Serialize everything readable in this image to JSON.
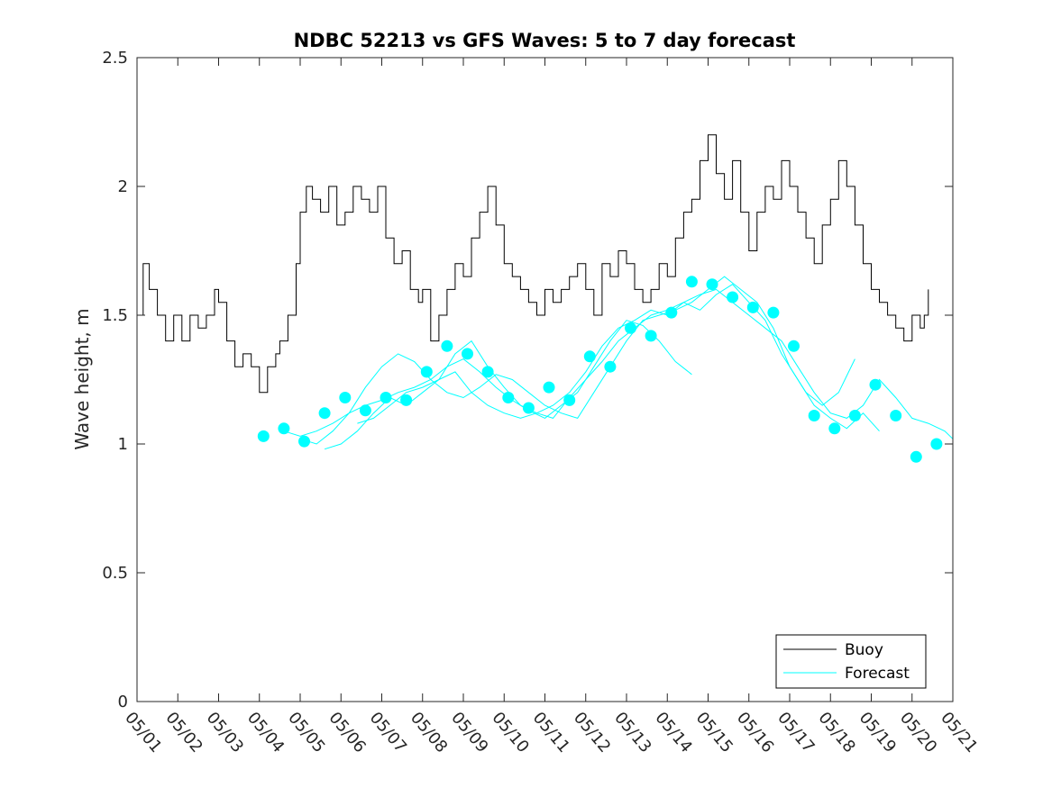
{
  "chart_data": {
    "type": "line",
    "title": "NDBC 52213 vs GFS Waves: 5 to 7 day forecast",
    "xlabel": "",
    "ylabel": "Wave height, m",
    "xlim": [
      0,
      20
    ],
    "ylim": [
      0,
      2.5
    ],
    "x_ticks": [
      "05/01",
      "05/02",
      "05/03",
      "05/04",
      "05/05",
      "05/06",
      "05/07",
      "05/08",
      "05/09",
      "05/10",
      "05/11",
      "05/12",
      "05/13",
      "05/14",
      "05/15",
      "05/16",
      "05/17",
      "05/18",
      "05/19",
      "05/20",
      "05/21"
    ],
    "y_ticks": [
      "0",
      "0.5",
      "1",
      "1.5",
      "2",
      "2.5"
    ],
    "grid": false,
    "legend": {
      "position": "bottom-right",
      "entries": [
        "Buoy",
        "Forecast"
      ]
    },
    "colors": {
      "buoy": "#000000",
      "forecast": "#00ffff"
    },
    "buoy": {
      "name": "Buoy",
      "x": [
        0.0,
        0.15,
        0.3,
        0.5,
        0.7,
        0.9,
        1.1,
        1.3,
        1.5,
        1.7,
        1.9,
        2.0,
        2.2,
        2.4,
        2.6,
        2.8,
        3.0,
        3.2,
        3.4,
        3.5,
        3.7,
        3.9,
        4.0,
        4.15,
        4.3,
        4.5,
        4.7,
        4.9,
        5.1,
        5.3,
        5.5,
        5.7,
        5.9,
        6.1,
        6.3,
        6.5,
        6.7,
        6.9,
        7.0,
        7.2,
        7.4,
        7.6,
        7.8,
        8.0,
        8.2,
        8.4,
        8.6,
        8.8,
        9.0,
        9.2,
        9.4,
        9.6,
        9.8,
        10.0,
        10.2,
        10.4,
        10.6,
        10.8,
        11.0,
        11.2,
        11.4,
        11.6,
        11.8,
        12.0,
        12.2,
        12.4,
        12.6,
        12.8,
        13.0,
        13.2,
        13.4,
        13.6,
        13.8,
        14.0,
        14.2,
        14.4,
        14.6,
        14.8,
        15.0,
        15.2,
        15.4,
        15.6,
        15.8,
        16.0,
        16.2,
        16.4,
        16.6,
        16.8,
        17.0,
        17.2,
        17.4,
        17.6,
        17.8,
        18.0,
        18.2,
        18.4,
        18.6,
        18.8,
        19.0,
        19.2,
        19.3,
        19.4
      ],
      "values": [
        1.5,
        1.7,
        1.6,
        1.5,
        1.4,
        1.5,
        1.4,
        1.5,
        1.45,
        1.5,
        1.6,
        1.55,
        1.4,
        1.3,
        1.35,
        1.3,
        1.2,
        1.3,
        1.35,
        1.4,
        1.5,
        1.7,
        1.9,
        2.0,
        1.95,
        1.9,
        2.0,
        1.85,
        1.9,
        2.0,
        1.95,
        1.9,
        2.0,
        1.8,
        1.7,
        1.75,
        1.6,
        1.55,
        1.6,
        1.4,
        1.5,
        1.6,
        1.7,
        1.65,
        1.8,
        1.9,
        2.0,
        1.85,
        1.7,
        1.65,
        1.6,
        1.55,
        1.5,
        1.6,
        1.55,
        1.6,
        1.65,
        1.7,
        1.6,
        1.5,
        1.7,
        1.65,
        1.75,
        1.7,
        1.6,
        1.55,
        1.6,
        1.7,
        1.65,
        1.8,
        1.9,
        1.95,
        2.1,
        2.2,
        2.05,
        1.95,
        2.1,
        1.9,
        1.75,
        1.9,
        2.0,
        1.95,
        2.1,
        2.0,
        1.9,
        1.8,
        1.7,
        1.85,
        1.95,
        2.1,
        2.0,
        1.85,
        1.7,
        1.6,
        1.55,
        1.5,
        1.45,
        1.4,
        1.5,
        1.45,
        1.5,
        1.6
      ]
    },
    "forecast": {
      "name": "Forecast",
      "markers": {
        "x": [
          3.1,
          3.6,
          4.1,
          4.6,
          5.1,
          5.6,
          6.1,
          6.6,
          7.1,
          7.6,
          8.1,
          8.6,
          9.1,
          9.6,
          10.1,
          10.6,
          11.1,
          11.6,
          12.1,
          12.6,
          13.1,
          13.6,
          14.1,
          14.6,
          15.1,
          15.6,
          16.1,
          16.6,
          17.1,
          17.6,
          18.1,
          18.6,
          19.1,
          19.6
        ],
        "values": [
          1.03,
          1.06,
          1.01,
          1.12,
          1.18,
          1.13,
          1.18,
          1.17,
          1.28,
          1.38,
          1.35,
          1.28,
          1.18,
          1.14,
          1.22,
          1.17,
          1.34,
          1.3,
          1.45,
          1.42,
          1.51,
          1.63,
          1.62,
          1.57,
          1.53,
          1.51,
          1.38,
          1.11,
          1.06,
          1.11,
          1.23,
          1.11,
          0.95,
          1.0
        ]
      },
      "runs": [
        {
          "x": [
            3.6,
            4.0,
            4.4,
            4.8,
            5.2,
            5.6,
            6.0,
            6.4,
            6.8,
            7.2,
            7.6,
            8.0,
            8.4,
            8.8,
            9.2,
            9.6,
            10.0,
            10.4,
            10.8,
            11.2,
            11.6,
            12.0,
            12.4,
            12.8,
            13.2,
            13.6
          ],
          "values": [
            1.05,
            1.03,
            1.05,
            1.08,
            1.12,
            1.15,
            1.17,
            1.2,
            1.22,
            1.25,
            1.3,
            1.33,
            1.28,
            1.22,
            1.17,
            1.13,
            1.1,
            1.15,
            1.2,
            1.3,
            1.4,
            1.48,
            1.46,
            1.4,
            1.32,
            1.27
          ]
        },
        {
          "x": [
            4.0,
            4.4,
            4.8,
            5.2,
            5.6,
            6.0,
            6.4,
            6.8,
            7.2,
            7.6,
            8.0,
            8.4,
            8.8,
            9.2,
            9.6,
            10.0,
            10.4,
            10.8,
            11.2,
            11.6,
            12.0,
            12.4,
            12.8,
            13.2,
            13.6,
            14.0,
            14.4,
            14.8,
            15.2,
            15.6,
            16.0,
            16.4,
            16.8,
            17.2,
            17.6
          ],
          "values": [
            1.02,
            1.0,
            1.05,
            1.12,
            1.22,
            1.3,
            1.35,
            1.32,
            1.25,
            1.2,
            1.18,
            1.22,
            1.27,
            1.25,
            1.2,
            1.15,
            1.12,
            1.1,
            1.2,
            1.3,
            1.4,
            1.48,
            1.5,
            1.52,
            1.55,
            1.6,
            1.65,
            1.6,
            1.55,
            1.45,
            1.3,
            1.2,
            1.15,
            1.2,
            1.33
          ]
        },
        {
          "x": [
            4.6,
            5.0,
            5.4,
            5.8,
            6.2,
            6.6,
            7.0,
            7.4,
            7.8,
            8.2,
            8.6,
            9.0,
            9.4,
            9.8,
            10.2,
            10.6,
            11.0,
            11.4,
            11.8,
            12.2,
            12.6,
            13.0,
            13.4,
            13.8,
            14.2,
            14.6,
            15.0,
            15.4,
            15.8,
            16.2,
            16.6,
            17.0,
            17.4,
            17.8,
            18.2
          ],
          "values": [
            0.98,
            1.0,
            1.05,
            1.12,
            1.18,
            1.15,
            1.2,
            1.25,
            1.35,
            1.4,
            1.3,
            1.22,
            1.15,
            1.12,
            1.1,
            1.18,
            1.25,
            1.32,
            1.4,
            1.45,
            1.5,
            1.52,
            1.55,
            1.52,
            1.58,
            1.62,
            1.55,
            1.48,
            1.35,
            1.25,
            1.15,
            1.1,
            1.06,
            1.12,
            1.05
          ]
        },
        {
          "x": [
            5.4,
            5.8,
            6.2,
            6.6,
            7.0,
            7.4,
            7.8,
            8.2,
            8.6,
            9.0,
            9.4,
            9.8,
            10.2,
            10.6,
            11.0,
            11.4,
            11.8,
            12.2,
            12.6,
            13.0,
            13.4,
            13.8,
            14.2,
            14.6,
            15.0,
            15.4,
            15.8,
            16.2,
            16.6,
            17.0,
            17.4,
            17.8,
            18.2,
            18.6,
            19.0,
            19.4,
            19.8,
            20.0
          ],
          "values": [
            1.08,
            1.1,
            1.15,
            1.2,
            1.22,
            1.25,
            1.28,
            1.2,
            1.15,
            1.12,
            1.1,
            1.12,
            1.15,
            1.2,
            1.28,
            1.38,
            1.45,
            1.48,
            1.52,
            1.5,
            1.55,
            1.58,
            1.6,
            1.55,
            1.5,
            1.45,
            1.4,
            1.3,
            1.2,
            1.12,
            1.1,
            1.15,
            1.25,
            1.18,
            1.1,
            1.08,
            1.05,
            1.02
          ]
        }
      ]
    }
  }
}
